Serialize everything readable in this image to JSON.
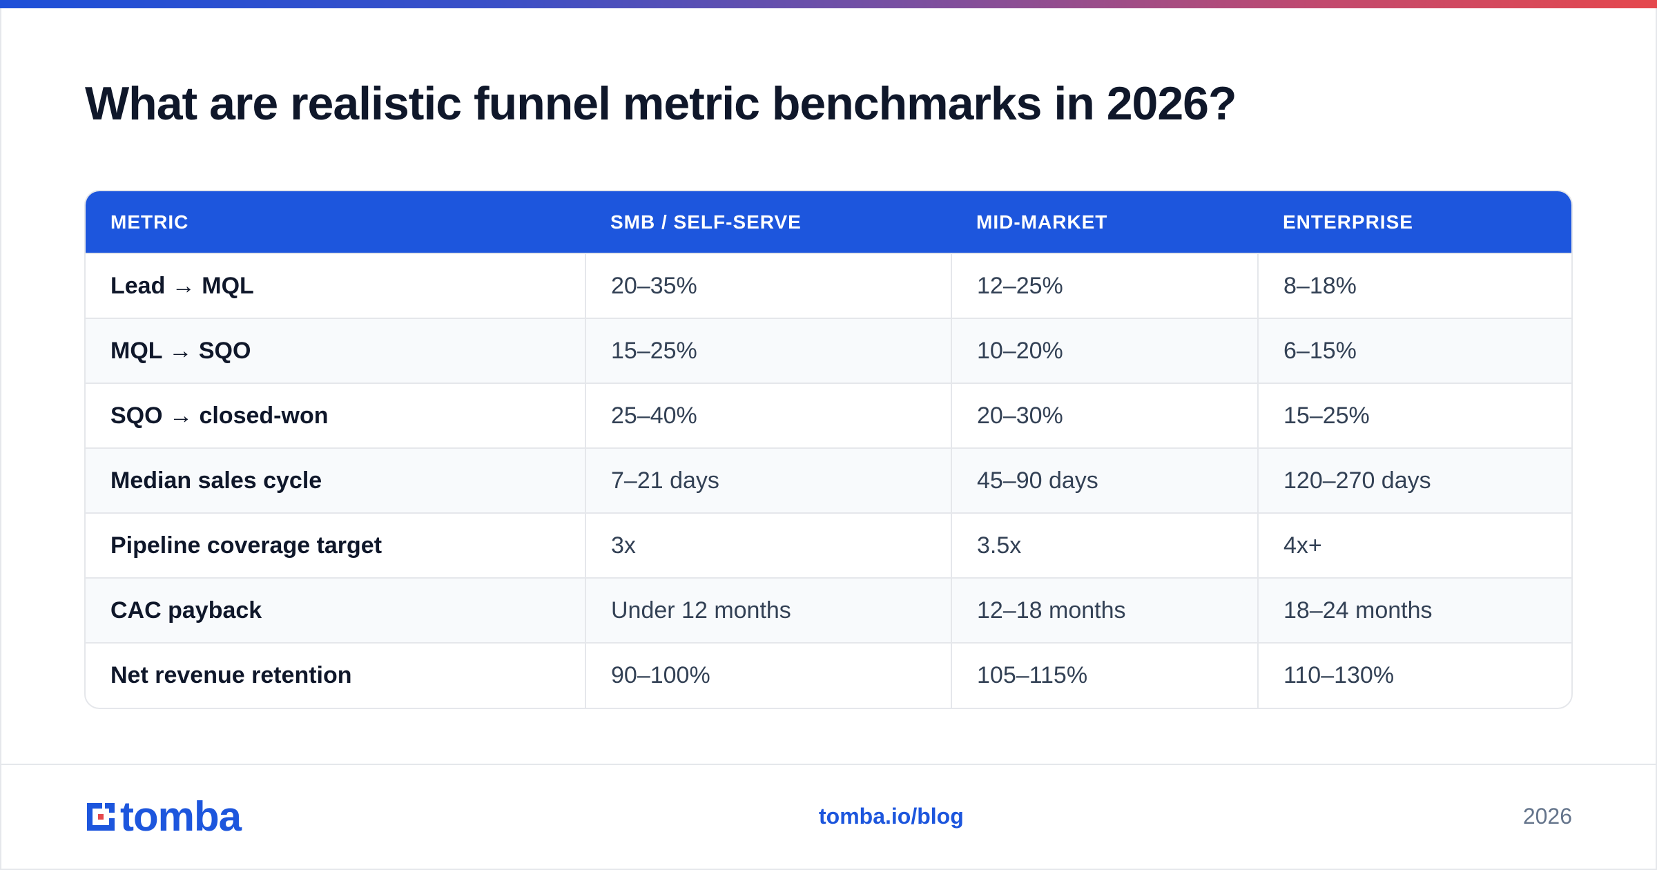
{
  "headline": "What are realistic funnel metric benchmarks in 2026?",
  "table": {
    "headers": [
      "METRIC",
      "SMB / SELF-SERVE",
      "MID-MARKET",
      "ENTERPRISE"
    ],
    "rows": [
      [
        "Lead → MQL",
        "20–35%",
        "12–25%",
        "8–18%"
      ],
      [
        "MQL → SQO",
        "15–25%",
        "10–20%",
        "6–15%"
      ],
      [
        "SQO → closed-won",
        "25–40%",
        "20–30%",
        "15–25%"
      ],
      [
        "Median sales cycle",
        "7–21 days",
        "45–90 days",
        "120–270 days"
      ],
      [
        "Pipeline coverage target",
        "3x",
        "3.5x",
        "4x+"
      ],
      [
        "CAC payback",
        "Under 12 months",
        "12–18 months",
        "18–24 months"
      ],
      [
        "Net revenue retention",
        "90–100%",
        "105–115%",
        "110–130%"
      ]
    ]
  },
  "footer": {
    "logo_text": "tomba",
    "link": "tomba.io/blog",
    "year": "2026"
  },
  "colors": {
    "brand_blue": "#1d56dd",
    "logo_red": "#e5484d"
  },
  "icons": {
    "logo_mark": "tomba-logo-icon"
  }
}
